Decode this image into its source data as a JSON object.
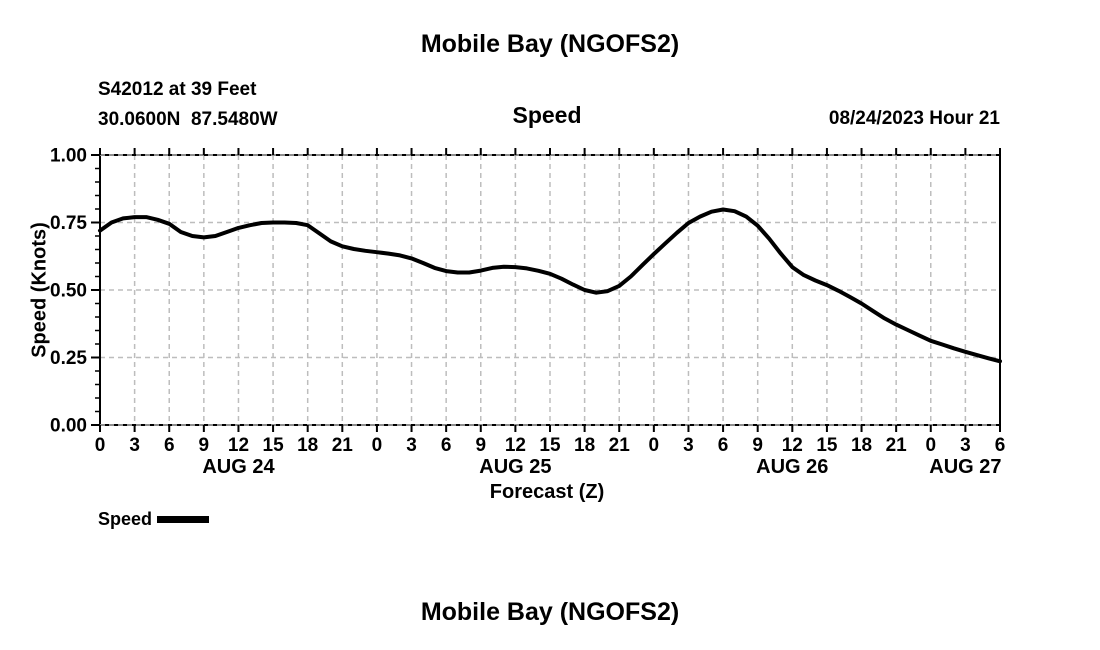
{
  "page": {
    "title": "Mobile Bay (NGOFS2)",
    "subtitle": "Speed",
    "station_line1": "S42012 at 39 Feet",
    "station_line2": "30.0600N  87.5480W",
    "datestamp": "08/24/2023 Hour 21",
    "bottom_title": "Mobile Bay (NGOFS2)"
  },
  "legend": {
    "label": "Speed"
  },
  "colors": {
    "line": "#000000",
    "grid": "#bdbdbd",
    "axis": "#000000",
    "text": "#000000",
    "background": "#ffffff"
  },
  "chart_data": {
    "type": "line",
    "title": "Mobile Bay (NGOFS2)",
    "subtitle": "Speed",
    "xlabel": "Forecast (Z)",
    "ylabel": "Speed (Knots)",
    "x_unit": "hours from 2023-08-24 00Z",
    "xlim": [
      0,
      78
    ],
    "ylim": [
      0.0,
      1.0
    ],
    "grid": true,
    "legend_position": "bottom-left",
    "y_major_ticks": [
      {
        "value": 0.0,
        "label": "0.00"
      },
      {
        "value": 0.25,
        "label": "0.25"
      },
      {
        "value": 0.5,
        "label": "0.50"
      },
      {
        "value": 0.75,
        "label": "0.75"
      },
      {
        "value": 1.0,
        "label": "1.00"
      }
    ],
    "y_minor_step": 0.05,
    "x_major_tick_step_hours": 3,
    "x_tick_labels": [
      "0",
      "3",
      "6",
      "9",
      "12",
      "15",
      "18",
      "21",
      "0",
      "3",
      "6",
      "9",
      "12",
      "15",
      "18",
      "21",
      "0",
      "3",
      "6",
      "9",
      "12",
      "15",
      "18",
      "21",
      "0",
      "3",
      "6"
    ],
    "day_labels": [
      {
        "label": "AUG 24",
        "hour": 12
      },
      {
        "label": "AUG 25",
        "hour": 36
      },
      {
        "label": "AUG 26",
        "hour": 60
      },
      {
        "label": "AUG 27",
        "hour": 75
      }
    ],
    "series": [
      {
        "name": "Speed",
        "x_start_hour": 0,
        "x_step_hours": 1,
        "values": [
          0.72,
          0.75,
          0.765,
          0.77,
          0.77,
          0.76,
          0.745,
          0.715,
          0.7,
          0.695,
          0.7,
          0.715,
          0.73,
          0.74,
          0.748,
          0.75,
          0.75,
          0.748,
          0.74,
          0.71,
          0.68,
          0.662,
          0.652,
          0.645,
          0.64,
          0.635,
          0.628,
          0.617,
          0.6,
          0.582,
          0.57,
          0.565,
          0.565,
          0.572,
          0.582,
          0.586,
          0.585,
          0.58,
          0.571,
          0.56,
          0.542,
          0.52,
          0.5,
          0.49,
          0.496,
          0.515,
          0.55,
          0.592,
          0.633,
          0.673,
          0.712,
          0.748,
          0.772,
          0.79,
          0.798,
          0.792,
          0.772,
          0.738,
          0.69,
          0.635,
          0.585,
          0.555,
          0.535,
          0.518,
          0.497,
          0.474,
          0.45,
          0.422,
          0.395,
          0.372,
          0.352,
          0.332,
          0.312,
          0.298,
          0.284,
          0.271,
          0.259,
          0.247,
          0.236
        ]
      }
    ]
  }
}
